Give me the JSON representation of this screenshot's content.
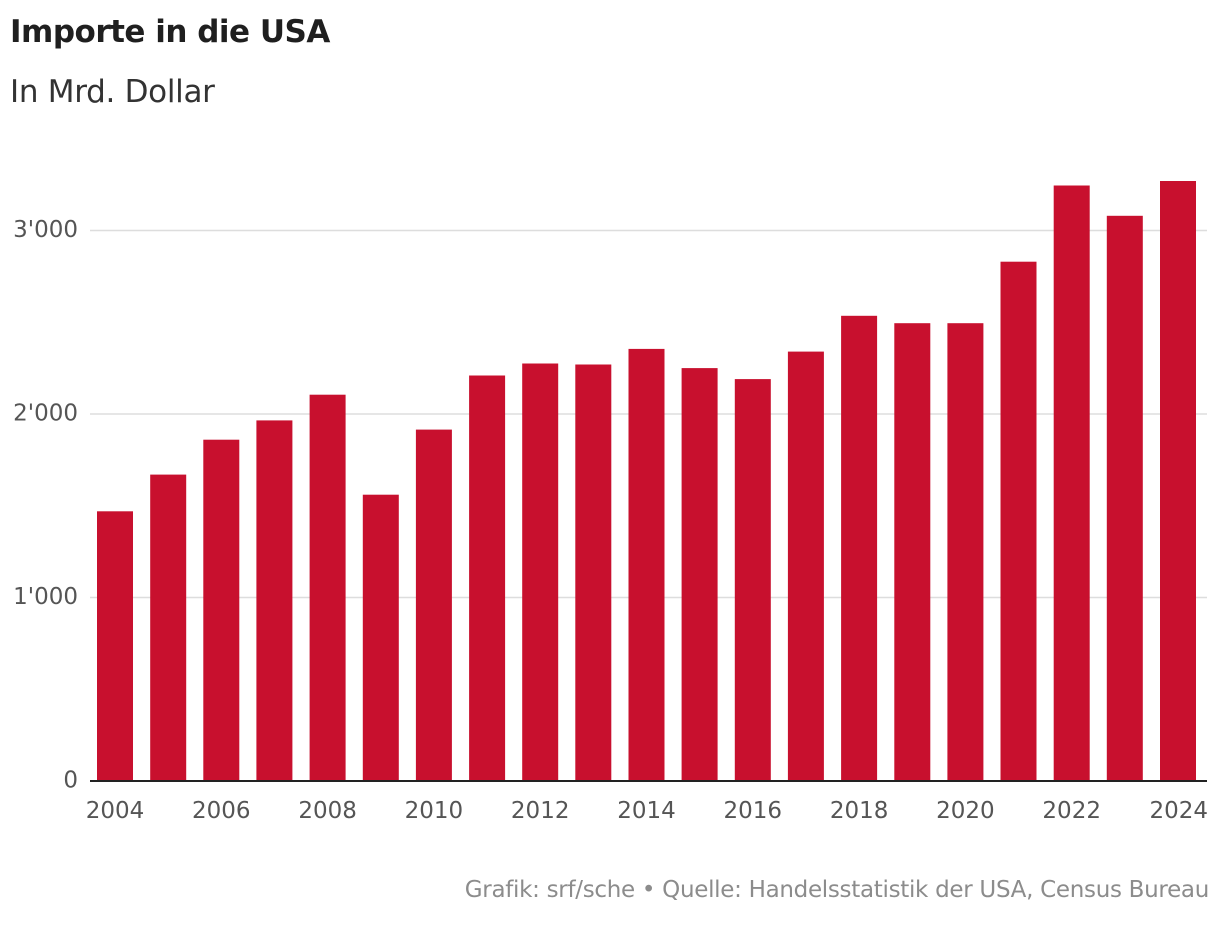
{
  "header": {
    "title": "Importe in die USA",
    "subtitle": "In Mrd. Dollar"
  },
  "footer": {
    "source": "Grafik: srf/sche • Quelle: Handelsstatistik der USA, Census Bureau"
  },
  "colors": {
    "bar": "#c8102e",
    "grid": "#dddddd",
    "axis": "#222222"
  },
  "chart_data": {
    "type": "bar",
    "title": "Importe in die USA",
    "subtitle": "In Mrd. Dollar",
    "xlabel": "",
    "ylabel": "",
    "categories": [
      "2004",
      "2005",
      "2006",
      "2007",
      "2008",
      "2009",
      "2010",
      "2011",
      "2012",
      "2013",
      "2014",
      "2015",
      "2016",
      "2017",
      "2018",
      "2019",
      "2020",
      "2021",
      "2022",
      "2023",
      "2024"
    ],
    "values": [
      1470,
      1670,
      1860,
      1965,
      2105,
      1560,
      1915,
      2210,
      2275,
      2270,
      2355,
      2250,
      2190,
      2340,
      2535,
      2495,
      2495,
      2830,
      3245,
      3080,
      3270
    ],
    "ylim": [
      0,
      3400
    ],
    "yticks": [
      0,
      1000,
      2000,
      3000
    ],
    "ytick_labels": [
      "0",
      "1'000",
      "2'000",
      "3'000"
    ],
    "xtick_labels": [
      "2004",
      "2006",
      "2008",
      "2010",
      "2012",
      "2014",
      "2016",
      "2018",
      "2020",
      "2022",
      "2024"
    ],
    "grid": true,
    "legend": "none"
  }
}
